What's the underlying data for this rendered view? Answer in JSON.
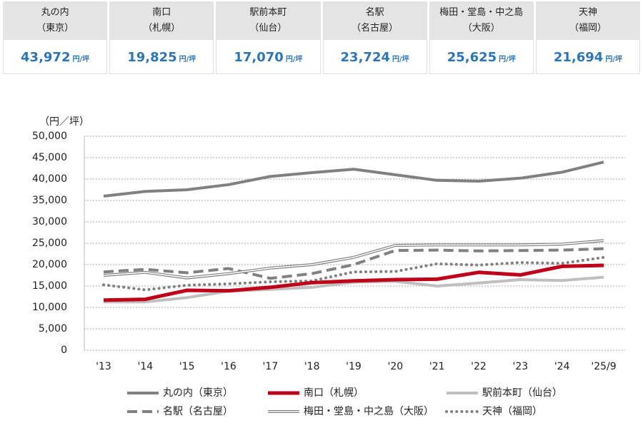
{
  "header": {
    "unit": "円/坪",
    "cells": [
      {
        "name1": "丸の内",
        "name2": "（東京）",
        "value": "43,972"
      },
      {
        "name1": "南口",
        "name2": "（札幌）",
        "value": "19,825"
      },
      {
        "name1": "駅前本町",
        "name2": "（仙台）",
        "value": "17,070"
      },
      {
        "name1": "名駅",
        "name2": "（名古屋）",
        "value": "23,724"
      },
      {
        "name1": "梅田・堂島・中之島",
        "name2": "（大阪）",
        "value": "25,625"
      },
      {
        "name1": "天神",
        "name2": "（福岡）",
        "value": "21,694"
      }
    ]
  },
  "chart_data": {
    "type": "line",
    "y_label": "（円／坪）",
    "categories": [
      "'13",
      "'14",
      "'15",
      "'16",
      "'17",
      "'18",
      "'19",
      "'20",
      "'21",
      "'22",
      "'23",
      "'24",
      "'25/9"
    ],
    "ylim": [
      0,
      50000
    ],
    "yticks": [
      0,
      {
        "value": 5000,
        "label": "5,000"
      },
      {
        "value": 10000,
        "label": "10,000"
      },
      {
        "value": 15000,
        "label": "15,000"
      },
      {
        "value": 20000,
        "label": "20,000"
      },
      {
        "value": 25000,
        "label": "25,000"
      },
      {
        "value": 30000,
        "label": "30,000"
      },
      {
        "value": 35000,
        "label": "35,000"
      },
      {
        "value": 40000,
        "label": "40,000"
      },
      {
        "value": 45000,
        "label": "45,000"
      },
      {
        "value": 50000,
        "label": "50,000"
      }
    ],
    "grid": true,
    "series": [
      {
        "name": "丸の内（東京）",
        "color": "#808080",
        "style": "solid",
        "values": [
          36000,
          37100,
          37500,
          38700,
          40600,
          41500,
          42300,
          41000,
          39700,
          39500,
          40200,
          41600,
          43972
        ]
      },
      {
        "name": "南口（札幌）",
        "color": "#c00018",
        "style": "solid",
        "values": [
          11700,
          11900,
          14000,
          13900,
          14700,
          15800,
          16200,
          16500,
          16600,
          18200,
          17600,
          19600,
          19825
        ]
      },
      {
        "name": "駅前本町（仙台）",
        "color": "#bfbfbf",
        "style": "solid",
        "values": [
          11300,
          11300,
          12300,
          13800,
          14200,
          14700,
          15900,
          16100,
          15000,
          15700,
          16500,
          16300,
          17070
        ]
      },
      {
        "name": "名駅（名古屋）",
        "color": "#808080",
        "style": "dashed",
        "values": [
          18300,
          18900,
          18100,
          19100,
          16800,
          17900,
          20000,
          23300,
          23400,
          23200,
          23300,
          23400,
          23724
        ]
      },
      {
        "name": "梅田・堂島・中之島（大阪）",
        "color": "#808080",
        "style": "double",
        "values": [
          17500,
          18200,
          16900,
          17900,
          19200,
          20000,
          21700,
          24500,
          24600,
          24600,
          24600,
          24800,
          25625
        ]
      },
      {
        "name": "天神（福岡）",
        "color": "#808080",
        "style": "dotted",
        "values": [
          15300,
          14100,
          15200,
          15500,
          16000,
          16200,
          18300,
          18400,
          20200,
          19900,
          20500,
          20300,
          21694
        ]
      }
    ]
  }
}
